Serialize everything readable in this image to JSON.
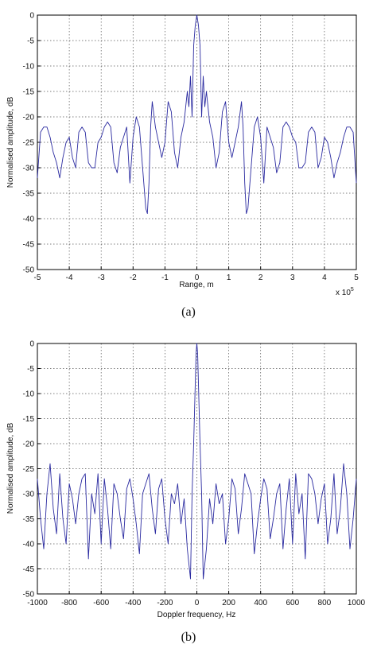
{
  "chart_data": [
    {
      "type": "line",
      "ylabel": "Normalised amplitude, dB",
      "xlabel": "Range, m",
      "x_multiplier_label": "x 10",
      "x_multiplier_exponent": "5",
      "caption": "(a)",
      "xlim": [
        -5,
        5
      ],
      "ylim": [
        -50,
        0
      ],
      "xticks": [
        "-5",
        "-4",
        "-3",
        "-2",
        "-1",
        "0",
        "1",
        "2",
        "3",
        "4",
        "5"
      ],
      "yticks": [
        "0",
        "-5",
        "-10",
        "-15",
        "-20",
        "-25",
        "-30",
        "-35",
        "-40",
        "-45",
        "-50"
      ],
      "grid": true,
      "series_color": "#2a2aa0",
      "series": [
        {
          "x": [
            -5,
            -4.9,
            -4.8,
            -4.7,
            -4.6,
            -4.5,
            -4.4,
            -4.3,
            -4.2,
            -4.1,
            -4,
            -3.9,
            -3.8,
            -3.7,
            -3.6,
            -3.5,
            -3.4,
            -3.3,
            -3.2,
            -3.1,
            -3,
            -2.9,
            -2.8,
            -2.7,
            -2.6,
            -2.5,
            -2.4,
            -2.3,
            -2.2,
            -2.1,
            -2,
            -1.9,
            -1.8,
            -1.7,
            -1.6,
            -1.55,
            -1.5,
            -1.45,
            -1.4,
            -1.3,
            -1.2,
            -1.1,
            -1,
            -0.9,
            -0.8,
            -0.7,
            -0.6,
            -0.5,
            -0.4,
            -0.3,
            -0.25,
            -0.2,
            -0.15,
            -0.1,
            -0.05,
            0,
            0.05,
            0.1,
            0.15,
            0.2,
            0.25,
            0.3,
            0.4,
            0.5,
            0.6,
            0.7,
            0.8,
            0.9,
            1,
            1.1,
            1.2,
            1.3,
            1.4,
            1.45,
            1.5,
            1.55,
            1.6,
            1.7,
            1.8,
            1.9,
            2,
            2.1,
            2.2,
            2.3,
            2.4,
            2.5,
            2.6,
            2.7,
            2.8,
            2.9,
            3,
            3.1,
            3.2,
            3.3,
            3.4,
            3.5,
            3.6,
            3.7,
            3.8,
            3.9,
            4,
            4.1,
            4.2,
            4.3,
            4.4,
            4.5,
            4.6,
            4.7,
            4.8,
            4.9,
            5
          ],
          "y": [
            -32,
            -23,
            -22,
            -22,
            -24,
            -27,
            -29,
            -32,
            -28,
            -25,
            -24,
            -28,
            -30,
            -23,
            -22,
            -23,
            -29,
            -30,
            -30,
            -25,
            -24,
            -22,
            -21,
            -22,
            -29,
            -31,
            -26,
            -24,
            -22,
            -33,
            -24,
            -20,
            -22,
            -30,
            -38,
            -39,
            -33,
            -22,
            -17,
            -22,
            -25,
            -28,
            -25,
            -17,
            -19,
            -27,
            -30,
            -24,
            -21,
            -15,
            -18,
            -12,
            -20,
            -6,
            -2,
            0,
            -2,
            -6,
            -20,
            -12,
            -18,
            -15,
            -21,
            -24,
            -30,
            -27,
            -19,
            -17,
            -25,
            -28,
            -25,
            -22,
            -17,
            -22,
            -33,
            -39,
            -38,
            -30,
            -22,
            -20,
            -24,
            -33,
            -22,
            -24,
            -26,
            -31,
            -29,
            -22,
            -21,
            -22,
            -24,
            -25,
            -30,
            -30,
            -29,
            -23,
            -22,
            -23,
            -30,
            -28,
            -24,
            -25,
            -28,
            -32,
            -29,
            -27,
            -24,
            -22,
            -22,
            -23,
            -33
          ]
        }
      ]
    },
    {
      "type": "line",
      "ylabel": "Normalised amplitude, dB",
      "xlabel": "Doppler frequency, Hz",
      "caption": "(b)",
      "xlim": [
        -1000,
        1000
      ],
      "ylim": [
        -50,
        0
      ],
      "xticks": [
        "-1000",
        "-800",
        "-600",
        "-400",
        "-200",
        "0",
        "200",
        "400",
        "600",
        "800",
        "1000"
      ],
      "yticks": [
        "0",
        "-5",
        "-10",
        "-15",
        "-20",
        "-25",
        "-30",
        "-35",
        "-40",
        "-45",
        "-50"
      ],
      "grid": true,
      "series_color": "#2a2aa0",
      "series": [
        {
          "x": [
            -1000,
            -980,
            -960,
            -940,
            -920,
            -900,
            -880,
            -860,
            -840,
            -820,
            -800,
            -780,
            -760,
            -740,
            -720,
            -700,
            -680,
            -660,
            -640,
            -620,
            -600,
            -580,
            -560,
            -540,
            -520,
            -500,
            -480,
            -460,
            -440,
            -420,
            -400,
            -380,
            -360,
            -340,
            -320,
            -300,
            -280,
            -260,
            -240,
            -220,
            -200,
            -180,
            -160,
            -140,
            -120,
            -100,
            -80,
            -60,
            -40,
            -30,
            -20,
            -10,
            -5,
            0,
            5,
            10,
            20,
            30,
            40,
            60,
            80,
            100,
            120,
            140,
            160,
            180,
            200,
            220,
            240,
            260,
            280,
            300,
            320,
            340,
            360,
            380,
            400,
            420,
            440,
            460,
            480,
            500,
            520,
            540,
            560,
            580,
            600,
            620,
            640,
            660,
            680,
            700,
            720,
            740,
            760,
            780,
            800,
            820,
            840,
            860,
            880,
            900,
            920,
            940,
            960,
            980,
            1000
          ],
          "y": [
            -27,
            -35,
            -41,
            -30,
            -24,
            -33,
            -38,
            -26,
            -35,
            -40,
            -28,
            -31,
            -36,
            -30,
            -27,
            -26,
            -43,
            -30,
            -34,
            -26,
            -40,
            -27,
            -33,
            -41,
            -28,
            -30,
            -35,
            -39,
            -29,
            -27,
            -31,
            -36,
            -42,
            -30,
            -28,
            -26,
            -33,
            -38,
            -29,
            -27,
            -35,
            -40,
            -30,
            -32,
            -28,
            -36,
            -31,
            -41,
            -47,
            -30,
            -20,
            -8,
            -2,
            0,
            -2,
            -8,
            -20,
            -30,
            -47,
            -41,
            -31,
            -36,
            -28,
            -32,
            -30,
            -40,
            -35,
            -27,
            -29,
            -38,
            -33,
            -26,
            -28,
            -30,
            -42,
            -36,
            -31,
            -27,
            -29,
            -39,
            -35,
            -30,
            -28,
            -41,
            -33,
            -27,
            -40,
            -26,
            -34,
            -30,
            -43,
            -26,
            -27,
            -30,
            -36,
            -31,
            -28,
            -40,
            -35,
            -26,
            -38,
            -33,
            -24,
            -30,
            -41,
            -35,
            -27
          ]
        }
      ]
    }
  ]
}
